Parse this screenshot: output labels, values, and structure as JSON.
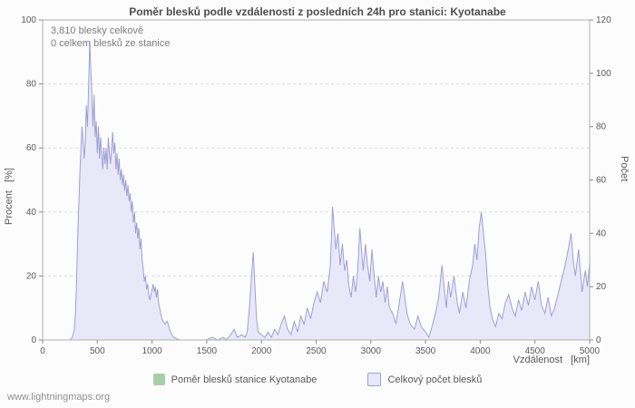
{
  "footer": {
    "text": "www.lightningmaps.org"
  },
  "chart_data": {
    "type": "area",
    "title": "Poměr blesků podle vzdálenosti z posledních 24h pro stanici: Kyotanabe",
    "annotations": [
      "3,810 blesky celkově",
      "0 celkem blesků ze stanice"
    ],
    "xlabel": "Vzdálenost   [km]",
    "ylabel_left": "Procent   [%]",
    "ylabel_right": "Počet",
    "xlim": [
      0,
      5000
    ],
    "ylim_left": [
      0,
      100
    ],
    "ylim_right": [
      0,
      120
    ],
    "xticks": [
      0,
      500,
      1000,
      1500,
      2000,
      2500,
      3000,
      3500,
      4000,
      4500,
      5000
    ],
    "yticks_left": [
      0,
      20,
      40,
      60,
      80,
      100
    ],
    "yticks_right": [
      0,
      20,
      40,
      60,
      80,
      100,
      120
    ],
    "grid": "horizontal-dashed",
    "legend_position": "bottom",
    "series": [
      {
        "name": "Poměr blesků stanice Kyotanabe",
        "axis": "left",
        "color": "#a8d0a8",
        "points": [
          [
            0,
            0
          ],
          [
            5000,
            0
          ]
        ]
      },
      {
        "name": "Celkový počet blesků",
        "axis": "right",
        "color_line": "#9f9fd8",
        "color_fill": "#e8e8f8",
        "points": [
          [
            0,
            0
          ],
          [
            150,
            0
          ],
          [
            250,
            0
          ],
          [
            270,
            1
          ],
          [
            290,
            4
          ],
          [
            300,
            10
          ],
          [
            310,
            22
          ],
          [
            320,
            38
          ],
          [
            330,
            50
          ],
          [
            340,
            62
          ],
          [
            350,
            72
          ],
          [
            360,
            80
          ],
          [
            370,
            75
          ],
          [
            380,
            68
          ],
          [
            390,
            74
          ],
          [
            400,
            88
          ],
          [
            410,
            80
          ],
          [
            420,
            95
          ],
          [
            430,
            112
          ],
          [
            440,
            102
          ],
          [
            450,
            92
          ],
          [
            460,
            80
          ],
          [
            470,
            92
          ],
          [
            480,
            76
          ],
          [
            490,
            82
          ],
          [
            500,
            70
          ],
          [
            510,
            80
          ],
          [
            520,
            68
          ],
          [
            530,
            76
          ],
          [
            540,
            70
          ],
          [
            550,
            64
          ],
          [
            560,
            72
          ],
          [
            570,
            66
          ],
          [
            580,
            72
          ],
          [
            590,
            64
          ],
          [
            600,
            76
          ],
          [
            610,
            70
          ],
          [
            620,
            66
          ],
          [
            630,
            72
          ],
          [
            640,
            78
          ],
          [
            650,
            70
          ],
          [
            660,
            74
          ],
          [
            670,
            64
          ],
          [
            680,
            70
          ],
          [
            690,
            62
          ],
          [
            700,
            68
          ],
          [
            710,
            60
          ],
          [
            720,
            64
          ],
          [
            730,
            58
          ],
          [
            740,
            62
          ],
          [
            750,
            56
          ],
          [
            760,
            60
          ],
          [
            770,
            54
          ],
          [
            780,
            58
          ],
          [
            790,
            52
          ],
          [
            800,
            55
          ],
          [
            810,
            48
          ],
          [
            820,
            52
          ],
          [
            830,
            44
          ],
          [
            840,
            48
          ],
          [
            850,
            40
          ],
          [
            860,
            44
          ],
          [
            870,
            38
          ],
          [
            880,
            42
          ],
          [
            890,
            34
          ],
          [
            900,
            38
          ],
          [
            910,
            30
          ],
          [
            920,
            26
          ],
          [
            930,
            22
          ],
          [
            940,
            24
          ],
          [
            950,
            19
          ],
          [
            960,
            21
          ],
          [
            970,
            17
          ],
          [
            980,
            15
          ],
          [
            990,
            17
          ],
          [
            1000,
            19
          ],
          [
            1010,
            21
          ],
          [
            1020,
            18
          ],
          [
            1030,
            20
          ],
          [
            1040,
            16
          ],
          [
            1050,
            19
          ],
          [
            1060,
            14
          ],
          [
            1070,
            12
          ],
          [
            1080,
            10
          ],
          [
            1090,
            8
          ],
          [
            1100,
            7
          ],
          [
            1120,
            6
          ],
          [
            1140,
            7
          ],
          [
            1160,
            4
          ],
          [
            1180,
            2
          ],
          [
            1200,
            1
          ],
          [
            1250,
            0
          ],
          [
            1350,
            0
          ],
          [
            1450,
            0
          ],
          [
            1500,
            0
          ],
          [
            1550,
            1
          ],
          [
            1600,
            0
          ],
          [
            1650,
            1
          ],
          [
            1680,
            0
          ],
          [
            1720,
            2
          ],
          [
            1750,
            4
          ],
          [
            1780,
            1
          ],
          [
            1820,
            2
          ],
          [
            1850,
            1
          ],
          [
            1870,
            3
          ],
          [
            1890,
            12
          ],
          [
            1910,
            24
          ],
          [
            1925,
            33
          ],
          [
            1940,
            20
          ],
          [
            1955,
            8
          ],
          [
            1970,
            3
          ],
          [
            2000,
            2
          ],
          [
            2030,
            1
          ],
          [
            2060,
            3
          ],
          [
            2090,
            1
          ],
          [
            2120,
            4
          ],
          [
            2150,
            2
          ],
          [
            2180,
            6
          ],
          [
            2210,
            9
          ],
          [
            2240,
            4
          ],
          [
            2270,
            2
          ],
          [
            2300,
            7
          ],
          [
            2330,
            3
          ],
          [
            2360,
            9
          ],
          [
            2390,
            6
          ],
          [
            2420,
            12
          ],
          [
            2450,
            8
          ],
          [
            2480,
            14
          ],
          [
            2510,
            18
          ],
          [
            2540,
            14
          ],
          [
            2570,
            22
          ],
          [
            2600,
            18
          ],
          [
            2630,
            28
          ],
          [
            2650,
            50
          ],
          [
            2665,
            42
          ],
          [
            2680,
            34
          ],
          [
            2700,
            40
          ],
          [
            2720,
            28
          ],
          [
            2740,
            36
          ],
          [
            2760,
            26
          ],
          [
            2780,
            30
          ],
          [
            2800,
            20
          ],
          [
            2820,
            16
          ],
          [
            2840,
            24
          ],
          [
            2860,
            18
          ],
          [
            2880,
            26
          ],
          [
            2900,
            42
          ],
          [
            2915,
            34
          ],
          [
            2930,
            26
          ],
          [
            2950,
            36
          ],
          [
            2970,
            28
          ],
          [
            2990,
            22
          ],
          [
            3010,
            34
          ],
          [
            3030,
            24
          ],
          [
            3050,
            16
          ],
          [
            3070,
            24
          ],
          [
            3090,
            18
          ],
          [
            3110,
            22
          ],
          [
            3130,
            14
          ],
          [
            3150,
            20
          ],
          [
            3170,
            12
          ],
          [
            3200,
            10
          ],
          [
            3230,
            6
          ],
          [
            3260,
            14
          ],
          [
            3290,
            22
          ],
          [
            3310,
            16
          ],
          [
            3330,
            10
          ],
          [
            3360,
            6
          ],
          [
            3400,
            4
          ],
          [
            3430,
            9
          ],
          [
            3460,
            5
          ],
          [
            3500,
            3
          ],
          [
            3530,
            1
          ],
          [
            3560,
            5
          ],
          [
            3590,
            10
          ],
          [
            3620,
            16
          ],
          [
            3650,
            28
          ],
          [
            3670,
            20
          ],
          [
            3690,
            12
          ],
          [
            3710,
            22
          ],
          [
            3730,
            16
          ],
          [
            3760,
            24
          ],
          [
            3790,
            14
          ],
          [
            3810,
            10
          ],
          [
            3840,
            18
          ],
          [
            3870,
            12
          ],
          [
            3900,
            22
          ],
          [
            3930,
            28
          ],
          [
            3950,
            36
          ],
          [
            3970,
            30
          ],
          [
            3990,
            42
          ],
          [
            4010,
            48
          ],
          [
            4030,
            40
          ],
          [
            4050,
            32
          ],
          [
            4070,
            20
          ],
          [
            4090,
            12
          ],
          [
            4110,
            8
          ],
          [
            4140,
            5
          ],
          [
            4170,
            10
          ],
          [
            4200,
            8
          ],
          [
            4230,
            14
          ],
          [
            4260,
            17
          ],
          [
            4290,
            12
          ],
          [
            4320,
            9
          ],
          [
            4350,
            15
          ],
          [
            4380,
            11
          ],
          [
            4410,
            18
          ],
          [
            4440,
            13
          ],
          [
            4470,
            20
          ],
          [
            4500,
            15
          ],
          [
            4530,
            22
          ],
          [
            4560,
            13
          ],
          [
            4590,
            10
          ],
          [
            4620,
            16
          ],
          [
            4650,
            9
          ],
          [
            4680,
            12
          ],
          [
            4710,
            17
          ],
          [
            4740,
            22
          ],
          [
            4770,
            27
          ],
          [
            4800,
            33
          ],
          [
            4830,
            40
          ],
          [
            4850,
            30
          ],
          [
            4870,
            24
          ],
          [
            4900,
            34
          ],
          [
            4930,
            18
          ],
          [
            4960,
            26
          ],
          [
            4980,
            20
          ],
          [
            5000,
            29
          ]
        ]
      }
    ]
  }
}
